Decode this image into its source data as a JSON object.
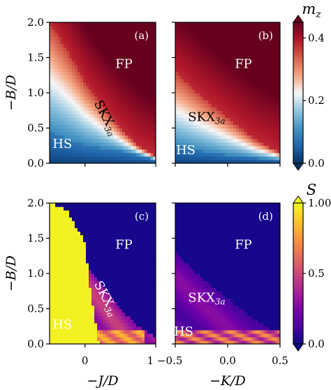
{
  "chart_data": [
    {
      "type": "heatmap",
      "panel": "(a)",
      "quantity": "mz",
      "colorbar_label": "m_z",
      "colormap": "RdBu_r",
      "clim": [
        0.0,
        0.45
      ],
      "xlabel": "",
      "ylabel": "−B/D",
      "xlim": [
        -0.5,
        1.0
      ],
      "ylim": [
        0.0,
        2.0
      ],
      "xticks": [
        0,
        1
      ],
      "yticks": [
        0.0,
        0.5,
        1.0,
        1.5,
        2.0
      ],
      "ytick_labels": [
        "0.0",
        "0.5",
        "1.0",
        "1.5",
        "2.0"
      ],
      "boundary_HS_SKX": {
        "x": [
          -0.5,
          -0.25,
          0.0,
          0.25,
          0.5,
          0.75,
          1.0
        ],
        "y": [
          0.45,
          0.35,
          0.27,
          0.22,
          0.18,
          0.12,
          0.05
        ]
      },
      "boundary_SKX_FP": {
        "x": [
          -0.5,
          -0.25,
          0.0,
          0.25,
          0.5,
          0.75,
          1.0
        ],
        "y": [
          2.0,
          1.6,
          1.15,
          0.8,
          0.5,
          0.25,
          0.1
        ]
      },
      "phase_labels": [
        {
          "text": "FP",
          "x": 0.55,
          "y": 1.35
        },
        {
          "text": "SKX",
          "sub": "3a",
          "x": 0.25,
          "y": 0.62,
          "rotate": true
        },
        {
          "text": "HS",
          "x": -0.32,
          "y": 0.22
        }
      ]
    },
    {
      "type": "heatmap",
      "panel": "(b)",
      "quantity": "mz",
      "colormap": "RdBu_r",
      "clim": [
        0.0,
        0.45
      ],
      "xlabel": "",
      "xlim": [
        -0.5,
        0.5
      ],
      "ylim": [
        0.0,
        2.0
      ],
      "xticks": [
        -0.5,
        0.0,
        0.5
      ],
      "boundary_HS_SKX": {
        "x": [
          -0.5,
          -0.25,
          0.0,
          0.25,
          0.5
        ],
        "y": [
          0.25,
          0.18,
          0.12,
          0.08,
          0.05
        ]
      },
      "boundary_SKX_FP": {
        "x": [
          -0.5,
          -0.25,
          0.0,
          0.25,
          0.5
        ],
        "y": [
          1.3,
          0.95,
          0.65,
          0.35,
          0.15
        ]
      },
      "phase_labels": [
        {
          "text": "FP",
          "x": 0.15,
          "y": 1.35
        },
        {
          "text": "SKX",
          "sub": "3a",
          "x": -0.2,
          "y": 0.6
        },
        {
          "text": "HS",
          "x": -0.4,
          "y": 0.13
        }
      ]
    },
    {
      "type": "heatmap",
      "panel": "(c)",
      "quantity": "S",
      "colorbar_label": "S",
      "colormap": "plasma",
      "clim": [
        0.0,
        1.0
      ],
      "xlabel": "−J/D",
      "ylabel": "−B/D",
      "xlim": [
        -0.5,
        1.0
      ],
      "ylim": [
        0.0,
        2.0
      ],
      "xticks": [
        0,
        1
      ],
      "yticks": [
        0.0,
        0.5,
        1.0,
        1.5,
        2.0
      ],
      "ytick_labels": [
        "0.0",
        "0.5",
        "1.0",
        "1.5",
        "2.0"
      ],
      "boundary_HS_SKX": {
        "x": [
          -0.5,
          -0.25,
          0.0,
          0.05,
          0.1,
          0.2
        ],
        "y": [
          2.0,
          1.9,
          1.45,
          1.0,
          0.6,
          0.0
        ]
      },
      "boundary_SKX_FP": {
        "x": [
          0.0,
          0.25,
          0.5,
          0.75,
          1.0
        ],
        "y": [
          1.15,
          0.8,
          0.5,
          0.25,
          0.1
        ]
      },
      "phase_labels": [
        {
          "text": "FP",
          "x": 0.55,
          "y": 1.35
        },
        {
          "text": "SKX",
          "sub": "3a",
          "x": 0.25,
          "y": 0.62,
          "rotate": true
        },
        {
          "text": "HS",
          "x": -0.32,
          "y": 0.22
        }
      ]
    },
    {
      "type": "heatmap",
      "panel": "(d)",
      "quantity": "S",
      "colormap": "plasma",
      "clim": [
        0.0,
        1.0
      ],
      "xlabel": "−K/D",
      "xlim": [
        -0.5,
        0.5
      ],
      "ylim": [
        0.0,
        2.0
      ],
      "xticks": [
        -0.5,
        0.0,
        0.5
      ],
      "xtick_labels": [
        "−0.5",
        "0.0",
        "0.5"
      ],
      "boundary_HS_SKX": {
        "x": [
          -0.5,
          -0.25,
          0.0,
          0.25,
          0.5
        ],
        "y": [
          0.25,
          0.18,
          0.12,
          0.08,
          0.05
        ]
      },
      "boundary_SKX_FP": {
        "x": [
          -0.5,
          -0.25,
          0.0,
          0.25,
          0.5
        ],
        "y": [
          1.3,
          0.95,
          0.65,
          0.35,
          0.15
        ]
      },
      "phase_labels": [
        {
          "text": "FP",
          "x": 0.15,
          "y": 1.35
        },
        {
          "text": "SKX",
          "sub": "3a",
          "x": -0.2,
          "y": 0.6
        },
        {
          "text": "HS",
          "x": -0.42,
          "y": 0.12
        }
      ]
    }
  ],
  "colorbars": [
    {
      "label": "m_z",
      "ticks": [
        0.0,
        0.2,
        0.4
      ],
      "tick_labels": [
        "0.0",
        "0.2",
        "0.4"
      ],
      "range": [
        0.0,
        0.45
      ],
      "extend": "both",
      "colormap": "RdBu_r"
    },
    {
      "label": "S",
      "ticks": [
        0.0,
        0.5,
        1.0
      ],
      "tick_labels": [
        "0.0",
        "0.5",
        "1.00"
      ],
      "range": [
        0.0,
        1.0
      ],
      "extend": "both",
      "colormap": "plasma"
    }
  ],
  "colors": {
    "rdbu": [
      "#053061",
      "#2166ac",
      "#4393c3",
      "#92c5de",
      "#f7f7f7",
      "#f4a582",
      "#d6604d",
      "#b2182b",
      "#67001f"
    ],
    "plasma": [
      "#0d0887",
      "#46039f",
      "#7201a8",
      "#9c179e",
      "#bd3786",
      "#d8576b",
      "#ed7953",
      "#fb9f3a",
      "#fdca26",
      "#f0f921"
    ]
  },
  "panel_x_label_left": "−J/D",
  "panel_x_label_right": "−K/D",
  "ylabel": "−B/D",
  "shared_xtick_label": "1 −0.5"
}
